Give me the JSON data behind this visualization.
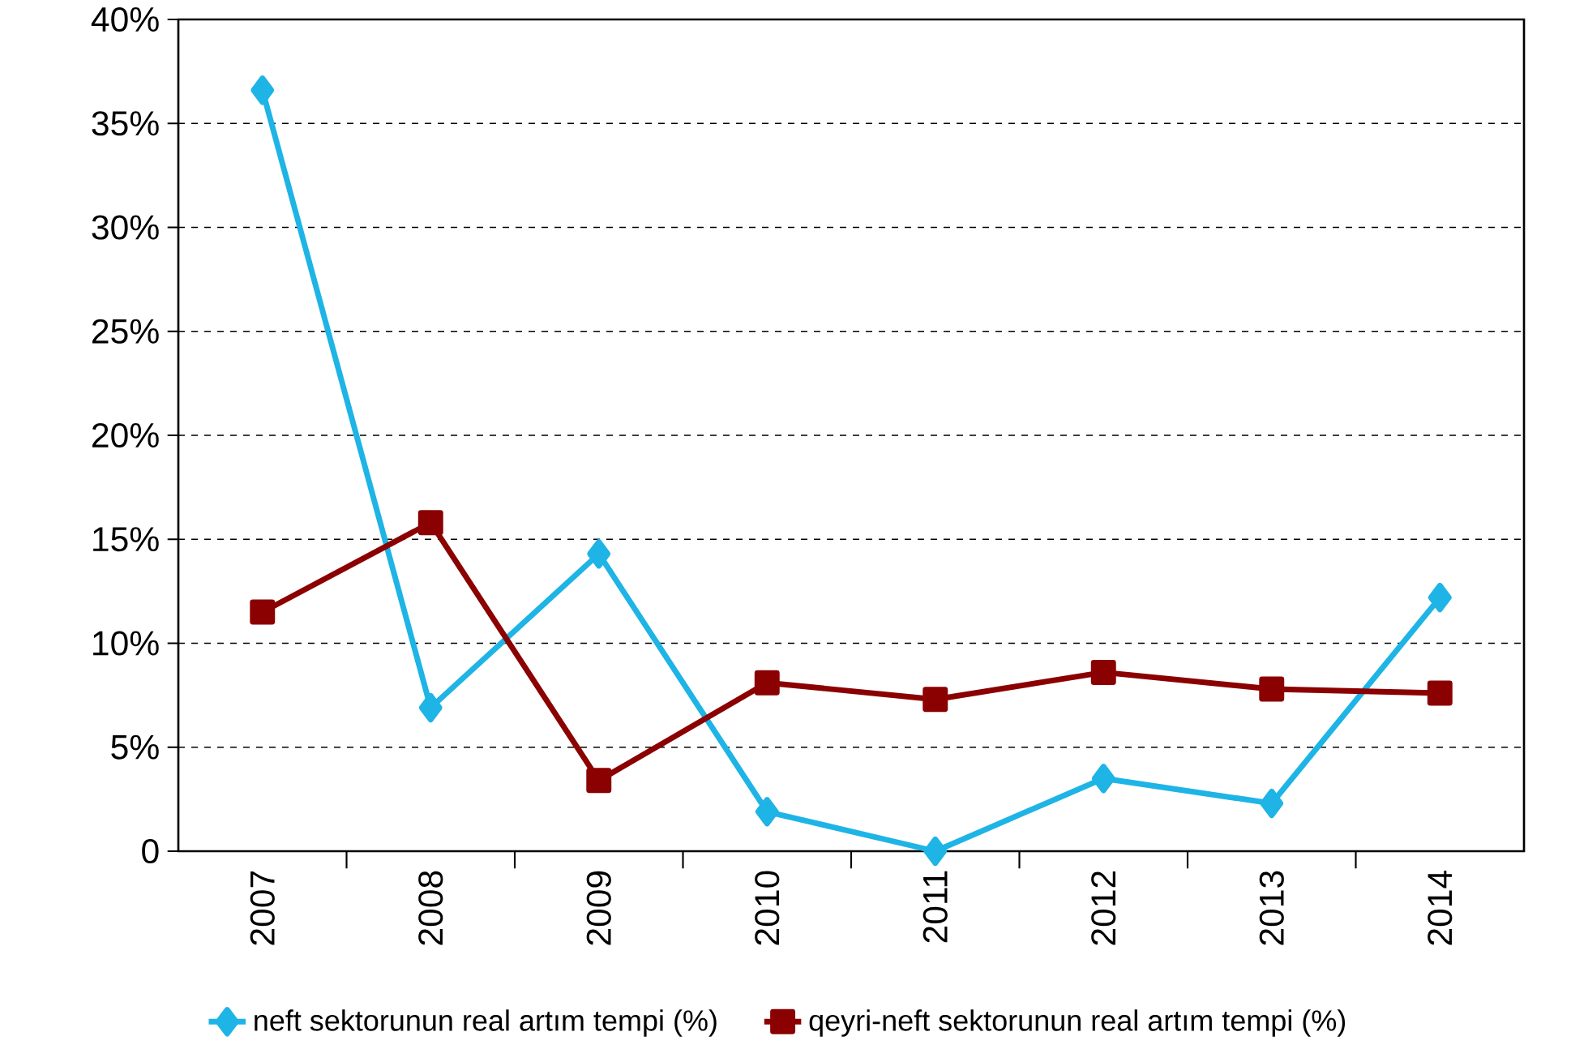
{
  "chart_data": {
    "type": "line",
    "categories": [
      "2007",
      "2008",
      "2009",
      "2010",
      "2011",
      "2012",
      "2013",
      "2014"
    ],
    "series": [
      {
        "name": "neft sektorunun real artım tempi (%)",
        "color": "#1eb4e6",
        "marker": "diamond",
        "values": [
          36.6,
          6.9,
          14.3,
          1.9,
          0,
          3.5,
          2.3,
          12.2
        ]
      },
      {
        "name": "qeyri-neft sektorunun real artım tempi (%)",
        "color": "#8b0000",
        "marker": "square",
        "values": [
          11.5,
          15.8,
          3.4,
          8.1,
          7.3,
          8.6,
          7.8,
          7.6
        ]
      }
    ],
    "ylim": [
      0,
      40
    ],
    "yticks": [
      {
        "value": 0,
        "label": "0"
      },
      {
        "value": 5,
        "label": "5%"
      },
      {
        "value": 10,
        "label": "10%"
      },
      {
        "value": 15,
        "label": "15%"
      },
      {
        "value": 20,
        "label": "20%"
      },
      {
        "value": 25,
        "label": "25%"
      },
      {
        "value": 30,
        "label": "30%"
      },
      {
        "value": 35,
        "label": "35%"
      },
      {
        "value": 40,
        "label": "40%"
      }
    ],
    "grid": "y",
    "legend": "bottom",
    "line_style": "solid"
  }
}
